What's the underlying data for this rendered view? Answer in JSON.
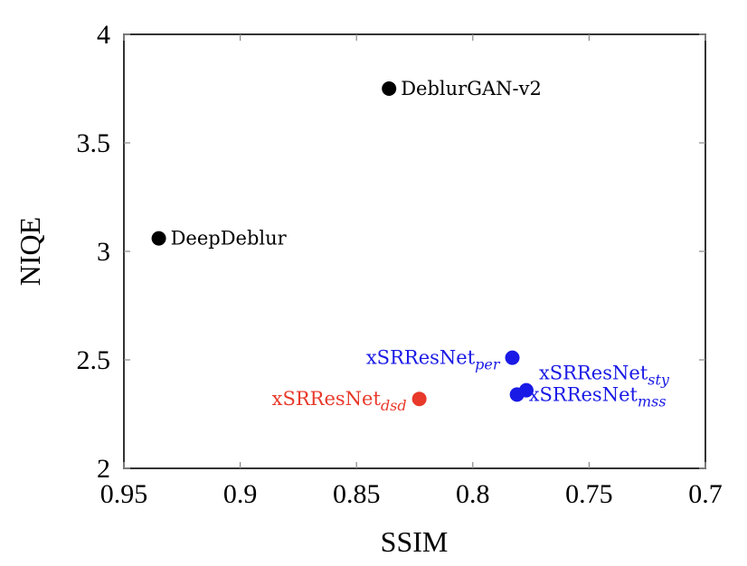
{
  "chart_data": {
    "type": "scatter",
    "title": "",
    "xlabel": "SSIM",
    "ylabel": "NIQE",
    "xlim": [
      0.95,
      0.7
    ],
    "ylim": [
      2,
      4
    ],
    "x_reversed": true,
    "xticks": [
      0.95,
      0.9,
      0.85,
      0.8,
      0.75,
      0.7
    ],
    "xtick_labels": [
      "0.95",
      "0.9",
      "0.85",
      "0.8",
      "0.75",
      "0.7"
    ],
    "yticks": [
      2,
      2.5,
      3,
      3.5,
      4
    ],
    "ytick_labels": [
      "2",
      "2.5",
      "3",
      "3.5",
      "4"
    ],
    "grid": false,
    "points": [
      {
        "label_main": "DeblurGAN-v2",
        "label_sub": "",
        "x": 0.836,
        "y": 3.75,
        "color": "#000000",
        "label_side": "right"
      },
      {
        "label_main": "DeepDeblur",
        "label_sub": "",
        "x": 0.935,
        "y": 3.06,
        "color": "#000000",
        "label_side": "right"
      },
      {
        "label_main": "xSRResNet",
        "label_sub": "per",
        "x": 0.783,
        "y": 2.51,
        "color": "#1a1ae6",
        "label_side": "left"
      },
      {
        "label_main": "xSRResNet",
        "label_sub": "sty",
        "x": 0.777,
        "y": 2.36,
        "color": "#1a1ae6",
        "label_side": "above-right"
      },
      {
        "label_main": "xSRResNet",
        "label_sub": "mss",
        "x": 0.781,
        "y": 2.34,
        "color": "#1a1ae6",
        "label_side": "right"
      },
      {
        "label_main": "xSRResNet",
        "label_sub": "dsd",
        "x": 0.823,
        "y": 2.32,
        "color": "#e8392b",
        "label_side": "left"
      }
    ]
  }
}
